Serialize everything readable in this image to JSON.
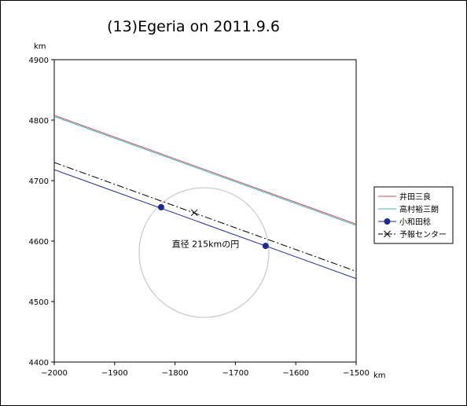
{
  "chart_data": {
    "type": "line",
    "title": "(13)Egeria on 2011.9.6",
    "xlabel": "km",
    "ylabel": "km",
    "xlim": [
      -2000,
      -1500
    ],
    "ylim": [
      4400,
      4900
    ],
    "xticks": [
      -2000,
      -1900,
      -1800,
      -1700,
      -1600,
      -1500
    ],
    "yticks": [
      4400,
      4500,
      4600,
      4700,
      4800,
      4900
    ],
    "xtick_labels": [
      "-2000",
      "-1900",
      "-1800",
      "-1700",
      "-1600",
      "-1500"
    ],
    "ytick_labels": [
      "4400",
      "4500",
      "4600",
      "4700",
      "4800",
      "4900"
    ],
    "grid": false,
    "legend_position": "right",
    "series": [
      {
        "name": "井田三良",
        "color": "#c0504d",
        "style": "solid",
        "marker": "none",
        "x": [
          -2000,
          -1500
        ],
        "y": [
          4808,
          4628
        ]
      },
      {
        "name": "高村裕三朗",
        "color": "#4bacc6",
        "style": "solid",
        "marker": "none",
        "x": [
          -2000,
          -1500
        ],
        "y": [
          4806,
          4626
        ]
      },
      {
        "name": "小和田稔",
        "color": "#1f2a8c",
        "style": "solid",
        "marker": "circle",
        "x": [
          -2000,
          -1500
        ],
        "y": [
          4718,
          4538
        ],
        "points": [
          [
            -1823,
            4656
          ],
          [
            -1650,
            4592
          ]
        ]
      },
      {
        "name": "予報センター",
        "color": "#000000",
        "style": "dashdot",
        "marker": "x",
        "x": [
          -2000,
          -1500
        ],
        "y": [
          4730,
          4550
        ],
        "points": [
          [
            -1768,
            4647
          ]
        ]
      }
    ],
    "circle": {
      "center": [
        -1752,
        4581
      ],
      "radius": 107.5,
      "color": "#c8c8c8"
    },
    "annotation": "直径 215kmの円"
  }
}
